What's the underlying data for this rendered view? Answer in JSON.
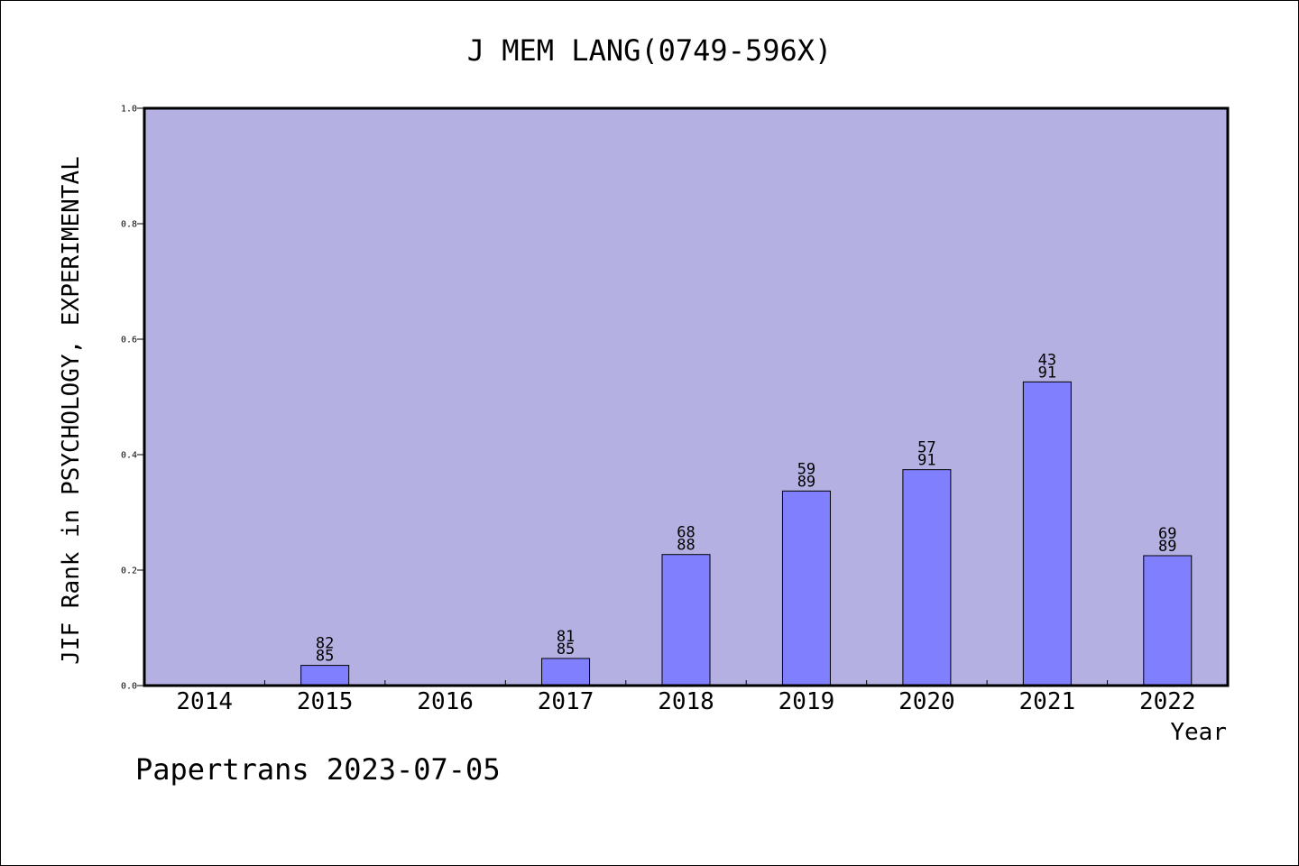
{
  "chart_data": {
    "type": "bar",
    "title": "J MEM LANG(0749-596X)",
    "xlabel": "Year",
    "ylabel": "JIF Rank in PSYCHOLOGY, EXPERIMENTAL",
    "ylim": [
      0,
      1.0
    ],
    "yticks": [
      "0.0",
      "0.2",
      "0.4",
      "0.6",
      "0.8",
      "1.0"
    ],
    "categories": [
      "2014",
      "2015",
      "2016",
      "2017",
      "2018",
      "2019",
      "2020",
      "2021",
      "2022"
    ],
    "values": [
      null,
      0.035,
      null,
      0.047,
      0.227,
      0.337,
      0.374,
      0.526,
      0.225
    ],
    "rank_labels": [
      null,
      [
        "82",
        "85"
      ],
      null,
      [
        "81",
        "85"
      ],
      [
        "68",
        "88"
      ],
      [
        "59",
        "89"
      ],
      [
        "57",
        "91"
      ],
      [
        "43",
        "91"
      ],
      [
        "69",
        "89"
      ]
    ],
    "grid": false,
    "colors": {
      "plot_bg": "#b5b0e2",
      "bar": "#8080ff",
      "bar_stroke": "#000000"
    }
  },
  "footer": "Papertrans 2023-07-05"
}
